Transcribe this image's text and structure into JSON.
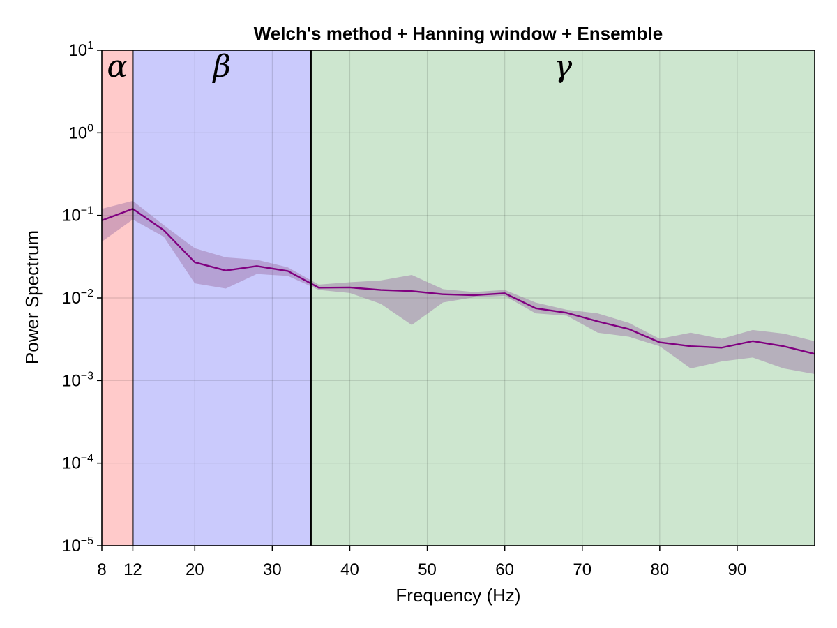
{
  "chart_data": {
    "type": "area",
    "title": "Welch's method + Hanning window + Ensemble",
    "xlabel": "Frequency (Hz)",
    "ylabel": "Power Spectrum",
    "xlim": [
      8,
      100
    ],
    "ylim": [
      1e-05,
      10
    ],
    "yscale": "log",
    "grid": true,
    "x_ticks": [
      {
        "value": 8,
        "label": "8"
      },
      {
        "value": 12,
        "label": "12"
      },
      {
        "value": 20,
        "label": "20"
      },
      {
        "value": 30,
        "label": "30"
      },
      {
        "value": 40,
        "label": "40"
      },
      {
        "value": 50,
        "label": "50"
      },
      {
        "value": 60,
        "label": "60"
      },
      {
        "value": 70,
        "label": "70"
      },
      {
        "value": 80,
        "label": "80"
      },
      {
        "value": 90,
        "label": "90"
      }
    ],
    "y_ticks": [
      {
        "value": 10,
        "base": "10",
        "exp": "1"
      },
      {
        "value": 1,
        "base": "10",
        "exp": "0"
      },
      {
        "value": 0.1,
        "base": "10",
        "exp": "−1"
      },
      {
        "value": 0.01,
        "base": "10",
        "exp": "−2"
      },
      {
        "value": 0.001,
        "base": "10",
        "exp": "−3"
      },
      {
        "value": 0.0001,
        "base": "10",
        "exp": "−4"
      },
      {
        "value": 1e-05,
        "base": "10",
        "exp": "−5"
      }
    ],
    "bands": [
      {
        "label": "α",
        "from": 8,
        "to": 12,
        "color": "#ffcaca"
      },
      {
        "label": "β",
        "from": 12,
        "to": 35,
        "color": "#cacafc"
      },
      {
        "label": "γ",
        "from": 35,
        "to": 100,
        "color": "#cde6cf"
      }
    ],
    "band_boundaries": [
      12,
      35
    ],
    "series": [
      {
        "color": "#800080",
        "band_color": "#9b6fa5",
        "x": [
          8,
          12,
          16,
          20,
          24,
          28,
          32,
          36,
          40,
          44,
          48,
          52,
          56,
          60,
          64,
          68,
          72,
          76,
          80,
          84,
          88,
          92,
          96,
          100
        ],
        "values": [
          0.087,
          0.12,
          0.066,
          0.027,
          0.0215,
          0.0243,
          0.0212,
          0.0133,
          0.0134,
          0.0125,
          0.0121,
          0.0111,
          0.0108,
          0.0114,
          0.0075,
          0.0066,
          0.0052,
          0.0042,
          0.0029,
          0.0026,
          0.0025,
          0.003,
          0.0026,
          0.0021
        ],
        "lower": [
          0.048,
          0.089,
          0.055,
          0.015,
          0.013,
          0.0195,
          0.0185,
          0.0125,
          0.0115,
          0.0085,
          0.0047,
          0.0088,
          0.0102,
          0.0106,
          0.0065,
          0.0061,
          0.0038,
          0.0034,
          0.0026,
          0.0014,
          0.0017,
          0.0019,
          0.0014,
          0.0012
        ],
        "upper": [
          0.12,
          0.15,
          0.076,
          0.04,
          0.031,
          0.029,
          0.0235,
          0.0145,
          0.0155,
          0.0163,
          0.019,
          0.0128,
          0.0118,
          0.0125,
          0.0088,
          0.0072,
          0.0065,
          0.005,
          0.0032,
          0.0038,
          0.0032,
          0.0041,
          0.0037,
          0.003
        ]
      }
    ]
  }
}
